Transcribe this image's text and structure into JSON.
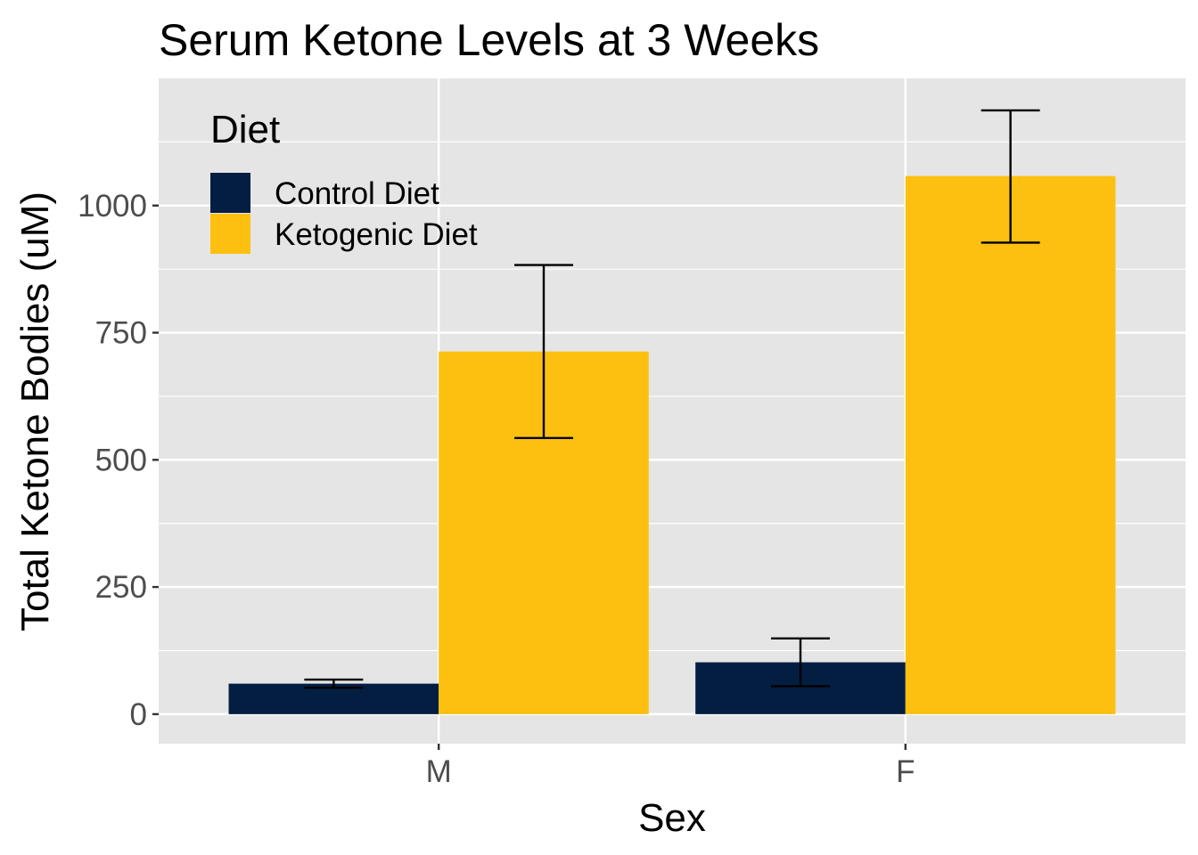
{
  "chart_data": {
    "type": "bar",
    "title": "Serum Ketone Levels at 3 Weeks",
    "xlabel": "Sex",
    "ylabel": "Total Ketone Bodies (uM)",
    "categories": [
      "M",
      "F"
    ],
    "yticks": [
      0,
      250,
      500,
      750,
      1000
    ],
    "ytick_labels": [
      "0",
      "250",
      "500",
      "750",
      "1000"
    ],
    "ylim": [
      -58,
      1250
    ],
    "grid": true,
    "legend": {
      "title": "Diet",
      "position": "top-left-inside"
    },
    "series": [
      {
        "name": "Control Diet",
        "color": "#041E42",
        "values": [
          60,
          102
        ],
        "error_low": [
          52,
          55
        ],
        "error_high": [
          68,
          149
        ]
      },
      {
        "name": "Ketogenic Diet",
        "color": "#FDC010",
        "values": [
          713,
          1058
        ],
        "error_low": [
          543,
          927
        ],
        "error_high": [
          883,
          1187
        ]
      }
    ]
  }
}
